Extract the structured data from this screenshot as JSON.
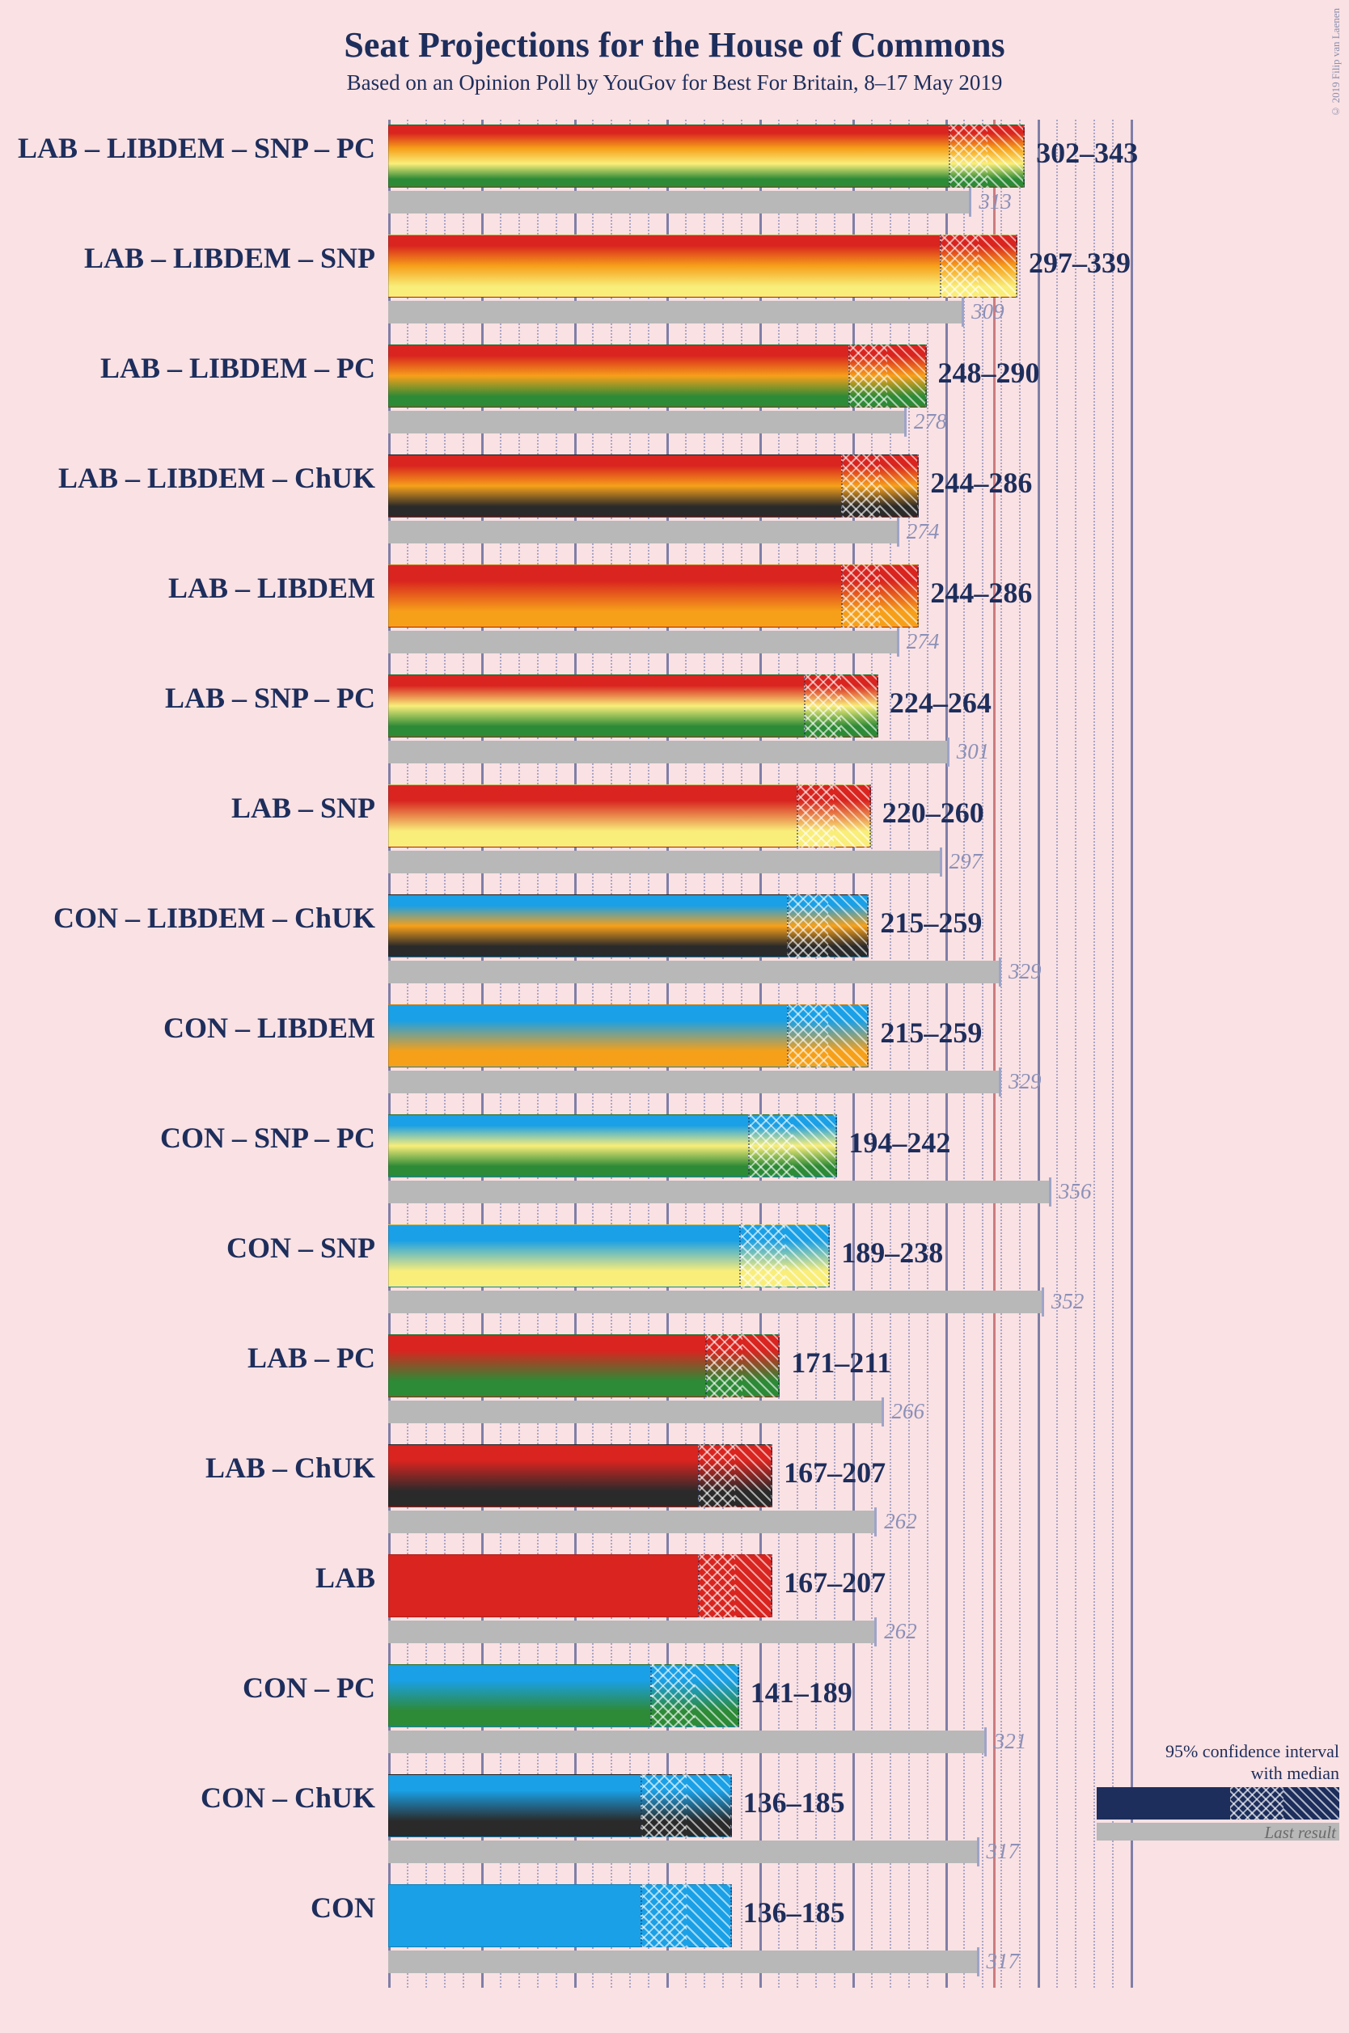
{
  "title": "Seat Projections for the House of Commons",
  "subtitle": "Based on an Opinion Poll by YouGov for Best For Britain, 8–17 May 2019",
  "copyright": "© 2019 Filip van Laenen",
  "xaxis": {
    "min": 0,
    "max": 400,
    "major_step": 50,
    "minor_step": 10
  },
  "majority_line": 326,
  "party_colors": {
    "LAB": "#d9241f",
    "CON": "#1aa0e6",
    "LIBDEM": "#f6a01a",
    "SNP": "#f9ee7a",
    "PC": "#2d8a36",
    "ChUK": "#2a2a2a"
  },
  "legend": {
    "ci_text_line1": "95% confidence interval",
    "ci_text_line2": "with median",
    "last_text": "Last result",
    "bar_color": "#1d2e5c"
  },
  "rows": [
    {
      "label": "LAB – LIBDEM – SNP – PC",
      "parties": [
        "LAB",
        "LIBDEM",
        "SNP",
        "PC"
      ],
      "lo": 302,
      "hi": 343,
      "median": 323,
      "last": 313,
      "range_text": "302–343"
    },
    {
      "label": "LAB – LIBDEM – SNP",
      "parties": [
        "LAB",
        "LIBDEM",
        "SNP"
      ],
      "lo": 297,
      "hi": 339,
      "median": 318,
      "last": 309,
      "range_text": "297–339"
    },
    {
      "label": "LAB – LIBDEM – PC",
      "parties": [
        "LAB",
        "LIBDEM",
        "PC"
      ],
      "lo": 248,
      "hi": 290,
      "median": 269,
      "last": 278,
      "range_text": "248–290"
    },
    {
      "label": "LAB – LIBDEM – ChUK",
      "parties": [
        "LAB",
        "LIBDEM",
        "ChUK"
      ],
      "lo": 244,
      "hi": 286,
      "median": 265,
      "last": 274,
      "range_text": "244–286"
    },
    {
      "label": "LAB – LIBDEM",
      "parties": [
        "LAB",
        "LIBDEM"
      ],
      "lo": 244,
      "hi": 286,
      "median": 265,
      "last": 274,
      "range_text": "244–286"
    },
    {
      "label": "LAB – SNP – PC",
      "parties": [
        "LAB",
        "SNP",
        "PC"
      ],
      "lo": 224,
      "hi": 264,
      "median": 244,
      "last": 301,
      "range_text": "224–264"
    },
    {
      "label": "LAB – SNP",
      "parties": [
        "LAB",
        "SNP"
      ],
      "lo": 220,
      "hi": 260,
      "median": 240,
      "last": 297,
      "range_text": "220–260"
    },
    {
      "label": "CON – LIBDEM – ChUK",
      "parties": [
        "CON",
        "LIBDEM",
        "ChUK"
      ],
      "lo": 215,
      "hi": 259,
      "median": 237,
      "last": 329,
      "range_text": "215–259"
    },
    {
      "label": "CON – LIBDEM",
      "parties": [
        "CON",
        "LIBDEM"
      ],
      "lo": 215,
      "hi": 259,
      "median": 237,
      "last": 329,
      "range_text": "215–259"
    },
    {
      "label": "CON – SNP – PC",
      "parties": [
        "CON",
        "SNP",
        "PC"
      ],
      "lo": 194,
      "hi": 242,
      "median": 218,
      "last": 356,
      "range_text": "194–242"
    },
    {
      "label": "CON – SNP",
      "parties": [
        "CON",
        "SNP"
      ],
      "lo": 189,
      "hi": 238,
      "median": 214,
      "last": 352,
      "range_text": "189–238"
    },
    {
      "label": "LAB – PC",
      "parties": [
        "LAB",
        "PC"
      ],
      "lo": 171,
      "hi": 211,
      "median": 191,
      "last": 266,
      "range_text": "171–211"
    },
    {
      "label": "LAB – ChUK",
      "parties": [
        "LAB",
        "ChUK"
      ],
      "lo": 167,
      "hi": 207,
      "median": 187,
      "last": 262,
      "range_text": "167–207"
    },
    {
      "label": "LAB",
      "parties": [
        "LAB"
      ],
      "lo": 167,
      "hi": 207,
      "median": 187,
      "last": 262,
      "range_text": "167–207"
    },
    {
      "label": "CON – PC",
      "parties": [
        "CON",
        "PC"
      ],
      "lo": 141,
      "hi": 189,
      "median": 165,
      "last": 321,
      "range_text": "141–189"
    },
    {
      "label": "CON – ChUK",
      "parties": [
        "CON",
        "ChUK"
      ],
      "lo": 136,
      "hi": 185,
      "median": 161,
      "last": 317,
      "range_text": "136–185"
    },
    {
      "label": "CON",
      "parties": [
        "CON"
      ],
      "lo": 136,
      "hi": 185,
      "median": 161,
      "last": 317,
      "range_text": "136–185"
    }
  ]
}
